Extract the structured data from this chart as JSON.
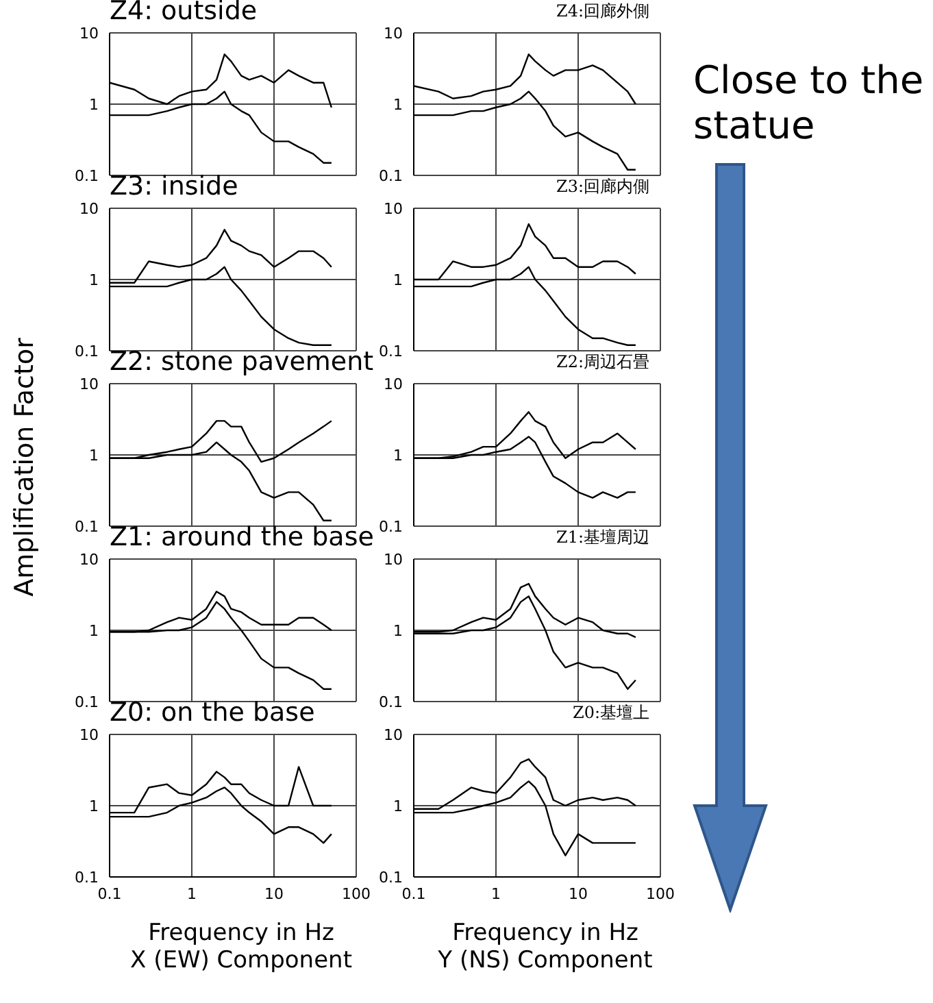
{
  "chart_data": [
    {
      "type": "line",
      "title": "Z4: outside",
      "x": [
        0.1,
        0.2,
        0.3,
        0.5,
        0.7,
        1,
        1.5,
        2,
        2.5,
        3,
        4,
        5,
        7,
        10,
        15,
        20,
        30,
        40,
        50
      ],
      "series": [
        {
          "color": "#000000",
          "values": [
            2.0,
            1.6,
            1.2,
            1.0,
            1.3,
            1.5,
            1.6,
            2.2,
            5,
            4,
            2.5,
            2.2,
            2.5,
            2,
            3,
            2.5,
            2,
            2,
            0.9
          ]
        },
        {
          "color": "#000000",
          "values": [
            0.7,
            0.7,
            0.7,
            0.8,
            0.9,
            1.0,
            1.0,
            1.2,
            1.5,
            1.0,
            0.8,
            0.7,
            0.4,
            0.3,
            0.3,
            0.25,
            0.2,
            0.15,
            0.15
          ]
        }
      ],
      "xlim": [
        0.1,
        100
      ],
      "ylim": [
        0.1,
        10
      ],
      "xticks": [
        0.1,
        1,
        10,
        100
      ],
      "yticks": [
        0.1,
        1,
        10
      ],
      "log": "xy",
      "grid": true,
      "tick_labels": "y"
    },
    {
      "type": "line",
      "title": "Z4:回廊外側",
      "annotations": [
        "Close to the statue"
      ],
      "x": [
        0.1,
        0.2,
        0.3,
        0.5,
        0.7,
        1,
        1.5,
        2,
        2.5,
        3,
        4,
        5,
        7,
        10,
        15,
        20,
        30,
        40,
        50
      ],
      "series": [
        {
          "color": "#000000",
          "values": [
            1.8,
            1.5,
            1.2,
            1.3,
            1.5,
            1.6,
            1.8,
            2.5,
            5,
            4,
            3,
            2.5,
            3,
            3,
            3.5,
            3,
            2,
            1.5,
            1
          ]
        },
        {
          "color": "#000000",
          "values": [
            0.7,
            0.7,
            0.7,
            0.8,
            0.8,
            0.9,
            1.0,
            1.2,
            1.5,
            1.2,
            0.8,
            0.5,
            0.35,
            0.4,
            0.3,
            0.25,
            0.2,
            0.12,
            0.12
          ]
        }
      ],
      "xlim": [
        0.1,
        100
      ],
      "ylim": [
        0.1,
        10
      ],
      "xticks": [
        0.1,
        1,
        10,
        100
      ],
      "yticks": [
        0.1,
        1,
        10
      ],
      "log": "xy",
      "grid": true,
      "tick_labels": "y"
    },
    {
      "type": "line",
      "title": "Z3: inside",
      "x": [
        0.1,
        0.2,
        0.3,
        0.5,
        0.7,
        1,
        1.5,
        2,
        2.5,
        3,
        4,
        5,
        7,
        10,
        15,
        20,
        30,
        40,
        50
      ],
      "series": [
        {
          "color": "#000000",
          "values": [
            0.9,
            0.9,
            1.8,
            1.6,
            1.5,
            1.6,
            2,
            3,
            5,
            3.5,
            3,
            2.5,
            2.2,
            1.5,
            2,
            2.5,
            2.5,
            2,
            1.5
          ]
        },
        {
          "color": "#000000",
          "values": [
            0.8,
            0.8,
            0.8,
            0.8,
            0.9,
            1.0,
            1.0,
            1.2,
            1.5,
            1.0,
            0.7,
            0.5,
            0.3,
            0.2,
            0.15,
            0.13,
            0.12,
            0.12,
            0.12
          ]
        }
      ],
      "xlim": [
        0.1,
        100
      ],
      "ylim": [
        0.1,
        10
      ],
      "xticks": [
        0.1,
        1,
        10,
        100
      ],
      "yticks": [
        0.1,
        1,
        10
      ],
      "log": "xy",
      "grid": true,
      "tick_labels": "y"
    },
    {
      "type": "line",
      "title": "Z3:回廊内側",
      "x": [
        0.1,
        0.2,
        0.3,
        0.5,
        0.7,
        1,
        1.5,
        2,
        2.5,
        3,
        4,
        5,
        7,
        10,
        15,
        20,
        30,
        40,
        50
      ],
      "series": [
        {
          "color": "#000000",
          "values": [
            1.0,
            1.0,
            1.8,
            1.5,
            1.5,
            1.6,
            2,
            3,
            6,
            4,
            3,
            2,
            2,
            1.5,
            1.5,
            1.8,
            1.8,
            1.5,
            1.2
          ]
        },
        {
          "color": "#000000",
          "values": [
            0.8,
            0.8,
            0.8,
            0.8,
            0.9,
            1.0,
            1.0,
            1.2,
            1.5,
            1.0,
            0.7,
            0.5,
            0.3,
            0.2,
            0.15,
            0.15,
            0.13,
            0.12,
            0.12
          ]
        }
      ],
      "xlim": [
        0.1,
        100
      ],
      "ylim": [
        0.1,
        10
      ],
      "xticks": [
        0.1,
        1,
        10,
        100
      ],
      "yticks": [
        0.1,
        1,
        10
      ],
      "log": "xy",
      "grid": true,
      "tick_labels": "y"
    },
    {
      "type": "line",
      "title": "Z2: stone pavement",
      "ylabel": "Amplification Factor",
      "x": [
        0.1,
        0.2,
        0.3,
        0.5,
        0.7,
        1,
        1.5,
        2,
        2.5,
        3,
        4,
        5,
        7,
        10,
        15,
        20,
        30,
        40,
        50
      ],
      "series": [
        {
          "color": "#000000",
          "values": [
            0.9,
            0.9,
            1.0,
            1.1,
            1.2,
            1.3,
            2,
            3,
            3,
            2.5,
            2.5,
            1.5,
            0.8,
            0.9,
            1.2,
            1.5,
            2,
            2.5,
            3
          ]
        },
        {
          "color": "#000000",
          "values": [
            0.9,
            0.9,
            0.9,
            1.0,
            1.0,
            1.0,
            1.1,
            1.5,
            1.2,
            1.0,
            0.8,
            0.6,
            0.3,
            0.25,
            0.3,
            0.3,
            0.2,
            0.12,
            0.12
          ]
        }
      ],
      "xlim": [
        0.1,
        100
      ],
      "ylim": [
        0.1,
        10
      ],
      "xticks": [
        0.1,
        1,
        10,
        100
      ],
      "yticks": [
        0.1,
        1,
        10
      ],
      "log": "xy",
      "grid": true,
      "tick_labels": "y"
    },
    {
      "type": "line",
      "title": "Z2:周辺石畳",
      "x": [
        0.1,
        0.2,
        0.3,
        0.5,
        0.7,
        1,
        1.5,
        2,
        2.5,
        3,
        4,
        5,
        7,
        10,
        15,
        20,
        30,
        40,
        50
      ],
      "series": [
        {
          "color": "#000000",
          "values": [
            0.9,
            0.9,
            0.95,
            1.1,
            1.3,
            1.3,
            2,
            3,
            4,
            3,
            2.5,
            1.5,
            0.9,
            1.2,
            1.5,
            1.5,
            2,
            1.5,
            1.2
          ]
        },
        {
          "color": "#000000",
          "values": [
            0.9,
            0.9,
            0.9,
            1.0,
            1.0,
            1.1,
            1.2,
            1.5,
            1.8,
            1.5,
            0.8,
            0.5,
            0.4,
            0.3,
            0.25,
            0.3,
            0.25,
            0.3,
            0.3
          ]
        }
      ],
      "xlim": [
        0.1,
        100
      ],
      "ylim": [
        0.1,
        10
      ],
      "xticks": [
        0.1,
        1,
        10,
        100
      ],
      "yticks": [
        0.1,
        1,
        10
      ],
      "log": "xy",
      "grid": true,
      "tick_labels": "y"
    },
    {
      "type": "line",
      "title": "Z1: around the base",
      "x": [
        0.1,
        0.2,
        0.3,
        0.5,
        0.7,
        1,
        1.5,
        2,
        2.5,
        3,
        4,
        5,
        7,
        10,
        15,
        20,
        30,
        40,
        50
      ],
      "series": [
        {
          "color": "#000000",
          "values": [
            0.95,
            0.95,
            1.0,
            1.3,
            1.5,
            1.4,
            2,
            3.5,
            3,
            2,
            1.8,
            1.5,
            1.2,
            1.2,
            1.2,
            1.5,
            1.5,
            1.2,
            1
          ]
        },
        {
          "color": "#000000",
          "values": [
            0.95,
            0.95,
            0.95,
            1.0,
            1.0,
            1.1,
            1.5,
            2.5,
            2,
            1.5,
            1.0,
            0.7,
            0.4,
            0.3,
            0.3,
            0.25,
            0.2,
            0.15,
            0.15
          ]
        }
      ],
      "xlim": [
        0.1,
        100
      ],
      "ylim": [
        0.1,
        10
      ],
      "xticks": [
        0.1,
        1,
        10,
        100
      ],
      "yticks": [
        0.1,
        1,
        10
      ],
      "log": "xy",
      "grid": true,
      "tick_labels": "y"
    },
    {
      "type": "line",
      "title": "Z1:基壇周辺",
      "x": [
        0.1,
        0.2,
        0.3,
        0.5,
        0.7,
        1,
        1.5,
        2,
        2.5,
        3,
        4,
        5,
        7,
        10,
        15,
        20,
        30,
        40,
        50
      ],
      "series": [
        {
          "color": "#000000",
          "values": [
            0.95,
            0.95,
            1.0,
            1.3,
            1.5,
            1.4,
            2,
            4,
            4.5,
            3,
            2,
            1.5,
            1.2,
            1.5,
            1.3,
            1.0,
            0.9,
            0.9,
            0.8
          ]
        },
        {
          "color": "#000000",
          "values": [
            0.9,
            0.9,
            0.9,
            1.0,
            1.0,
            1.1,
            1.5,
            2.5,
            3,
            2,
            1,
            0.5,
            0.3,
            0.35,
            0.3,
            0.3,
            0.25,
            0.15,
            0.2
          ]
        }
      ],
      "xlim": [
        0.1,
        100
      ],
      "ylim": [
        0.1,
        10
      ],
      "xticks": [
        0.1,
        1,
        10,
        100
      ],
      "yticks": [
        0.1,
        1,
        10
      ],
      "log": "xy",
      "grid": true,
      "tick_labels": "y"
    },
    {
      "type": "line",
      "title": "Z0: on the base",
      "xlabel": "Frequency in Hz",
      "annotations": [
        "X (EW) Component"
      ],
      "x": [
        0.1,
        0.2,
        0.3,
        0.5,
        0.7,
        1,
        1.5,
        2,
        2.5,
        3,
        4,
        5,
        7,
        10,
        15,
        20,
        30,
        40,
        50
      ],
      "series": [
        {
          "color": "#000000",
          "values": [
            0.8,
            0.8,
            1.8,
            2,
            1.5,
            1.4,
            2,
            3,
            2.5,
            2,
            2,
            1.5,
            1.2,
            1,
            1,
            3.5,
            1.0,
            1.0,
            1.0
          ]
        },
        {
          "color": "#000000",
          "values": [
            0.7,
            0.7,
            0.7,
            0.8,
            1.0,
            1.1,
            1.3,
            1.6,
            1.8,
            1.5,
            1.0,
            0.8,
            0.6,
            0.4,
            0.5,
            0.5,
            0.4,
            0.3,
            0.4
          ]
        }
      ],
      "xlim": [
        0.1,
        100
      ],
      "ylim": [
        0.1,
        10
      ],
      "xticks": [
        0.1,
        1,
        10,
        100
      ],
      "yticks": [
        0.1,
        1,
        10
      ],
      "log": "xy",
      "grid": true
    },
    {
      "type": "line",
      "title": "Z0:基壇上",
      "xlabel": "Frequency in Hz",
      "annotations": [
        "Y (NS) Component"
      ],
      "x": [
        0.1,
        0.2,
        0.3,
        0.5,
        0.7,
        1,
        1.5,
        2,
        2.5,
        3,
        4,
        5,
        7,
        10,
        15,
        20,
        30,
        40,
        50
      ],
      "series": [
        {
          "color": "#000000",
          "values": [
            0.9,
            0.9,
            1.2,
            1.8,
            1.6,
            1.5,
            2.5,
            4,
            4.5,
            3.5,
            2.5,
            1.2,
            1.0,
            1.2,
            1.3,
            1.2,
            1.3,
            1.2,
            1.0
          ]
        },
        {
          "color": "#000000",
          "values": [
            0.8,
            0.8,
            0.8,
            0.9,
            1.0,
            1.1,
            1.3,
            1.8,
            2.2,
            1.8,
            1.0,
            0.4,
            0.2,
            0.4,
            0.3,
            0.3,
            0.3,
            0.3,
            0.3
          ]
        }
      ],
      "xlim": [
        0.1,
        100
      ],
      "ylim": [
        0.1,
        10
      ],
      "xticks": [
        0.1,
        1,
        10,
        100
      ],
      "yticks": [
        0.1,
        1,
        10
      ],
      "log": "xy",
      "grid": true
    }
  ]
}
